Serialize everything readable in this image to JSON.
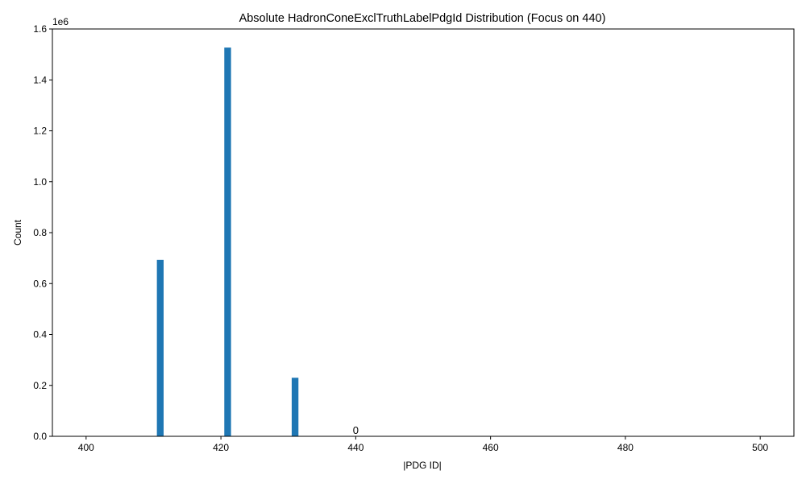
{
  "chart_data": {
    "type": "bar",
    "title": "Absolute HadronConeExclTruthLabelPdgId Distribution (Focus on 440)",
    "xlabel": "|PDG ID|",
    "ylabel": "Count",
    "y_offset_label": "1e6",
    "xlim": [
      395,
      505
    ],
    "ylim": [
      0,
      1600000
    ],
    "x_ticks": [
      400,
      420,
      440,
      460,
      480,
      500
    ],
    "y_ticks": [
      0,
      200000,
      400000,
      600000,
      800000,
      1000000,
      1200000,
      1400000,
      1600000
    ],
    "y_tick_labels": [
      "0.0",
      "0.2",
      "0.4",
      "0.6",
      "0.8",
      "1.0",
      "1.2",
      "1.4",
      "1.6"
    ],
    "bar_width": 1,
    "bars": [
      {
        "x": 411,
        "value": 693000
      },
      {
        "x": 421,
        "value": 1527000
      },
      {
        "x": 431,
        "value": 230000
      }
    ],
    "annotations": [
      {
        "x": 440,
        "y": 0,
        "text": "0"
      }
    ],
    "bar_color": "#1f77b4",
    "grid": false,
    "legend": "none"
  }
}
